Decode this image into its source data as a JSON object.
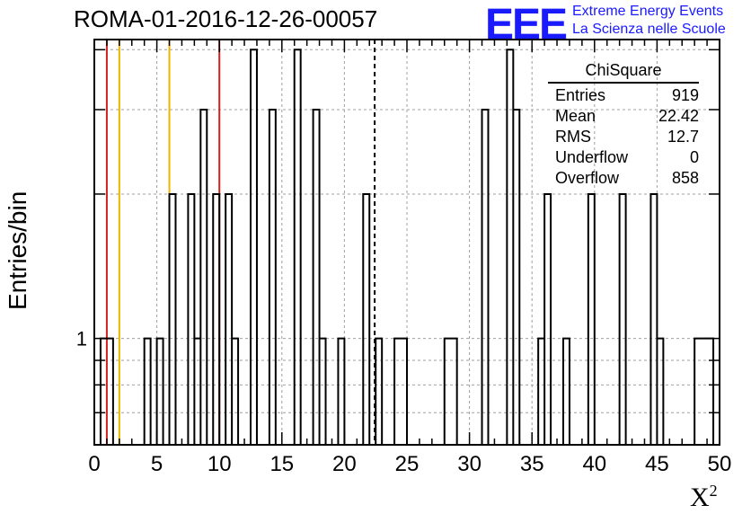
{
  "title": "ROMA-01-2016-12-26-00057",
  "logo": {
    "brand": "EEE",
    "line1": "Extreme Energy Events",
    "line2": "La Scienza nelle Scuole"
  },
  "stats": {
    "name": "ChiSquare",
    "rows": [
      {
        "label": "Entries",
        "value": "919"
      },
      {
        "label": "Mean",
        "value": "22.42"
      },
      {
        "label": "RMS",
        "value": "12.7"
      },
      {
        "label": "Underflow",
        "value": "0"
      },
      {
        "label": "Overflow",
        "value": "858"
      }
    ]
  },
  "colors": {
    "red_line": "#d62020",
    "orange_line": "#f0b400",
    "histogram": "#000000",
    "grid": "#a0a0a0"
  },
  "chart_data": {
    "type": "histogram",
    "xlabel": "X²",
    "ylabel": "Entries/bin",
    "xlim": [
      0,
      50
    ],
    "ylog": true,
    "ylim": [
      0.6,
      4.2
    ],
    "xticks": [
      0,
      5,
      10,
      15,
      20,
      25,
      30,
      35,
      40,
      45,
      50
    ],
    "ytick_label": "1",
    "bin_width": 0.5,
    "bins": [
      [
        0.5,
        1.5,
        1
      ],
      [
        4.0,
        4.5,
        1
      ],
      [
        5.0,
        5.5,
        1
      ],
      [
        6.0,
        6.5,
        2
      ],
      [
        7.5,
        8.0,
        2
      ],
      [
        8.0,
        8.5,
        1
      ],
      [
        8.5,
        9.0,
        3
      ],
      [
        9.5,
        10.0,
        2
      ],
      [
        10.5,
        11.0,
        2
      ],
      [
        11.0,
        11.5,
        1
      ],
      [
        12.5,
        13.0,
        4
      ],
      [
        14.0,
        14.5,
        3
      ],
      [
        16.0,
        16.5,
        4
      ],
      [
        17.5,
        18.0,
        3
      ],
      [
        18.0,
        18.5,
        1
      ],
      [
        19.5,
        20.0,
        1
      ],
      [
        21.5,
        22.0,
        2
      ],
      [
        22.5,
        23.0,
        1
      ],
      [
        24.0,
        25.0,
        1
      ],
      [
        28.0,
        29.0,
        1
      ],
      [
        31.0,
        31.5,
        3
      ],
      [
        33.0,
        33.5,
        4
      ],
      [
        33.5,
        34.0,
        3
      ],
      [
        35.5,
        36.0,
        1
      ],
      [
        36.0,
        36.5,
        2
      ],
      [
        37.5,
        38.0,
        1
      ],
      [
        39.5,
        40.0,
        2
      ],
      [
        42.0,
        42.5,
        2
      ],
      [
        44.5,
        45.0,
        2
      ],
      [
        45.0,
        45.5,
        1
      ],
      [
        48.0,
        49.5,
        1
      ]
    ],
    "vlines": [
      {
        "x": 1.0,
        "color": "red"
      },
      {
        "x": 2.0,
        "color": "orange"
      },
      {
        "x": 6.0,
        "color": "orange"
      },
      {
        "x": 10.0,
        "color": "red"
      },
      {
        "x": 22.42,
        "color": "black",
        "style": "dashed"
      }
    ],
    "grid": true
  }
}
